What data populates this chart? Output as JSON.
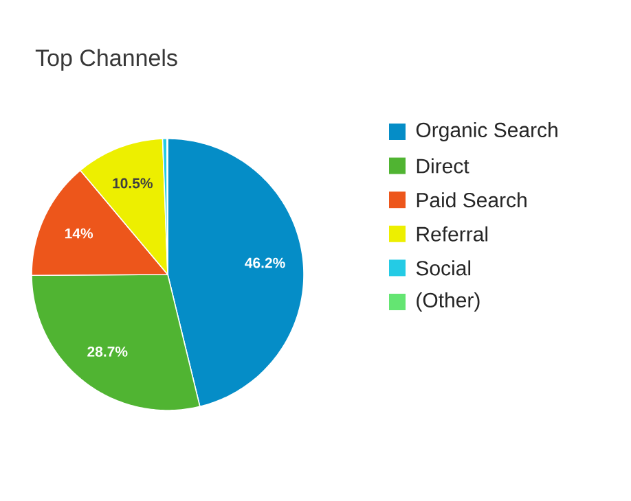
{
  "chart_data": {
    "type": "pie",
    "title": "Top Channels",
    "categories": [
      "Organic Search",
      "Direct",
      "Paid Search",
      "Referral",
      "Social",
      "(Other)"
    ],
    "values": [
      46.2,
      28.7,
      14,
      10.5,
      0.5,
      0.1
    ],
    "colors": [
      "#058dc7",
      "#50b432",
      "#ed561b",
      "#edef00",
      "#24cbe5",
      "#64e572"
    ],
    "value_labels": [
      "46.2%",
      "28.7%",
      "14%",
      "10.5%",
      null,
      null
    ],
    "legend": "right"
  }
}
